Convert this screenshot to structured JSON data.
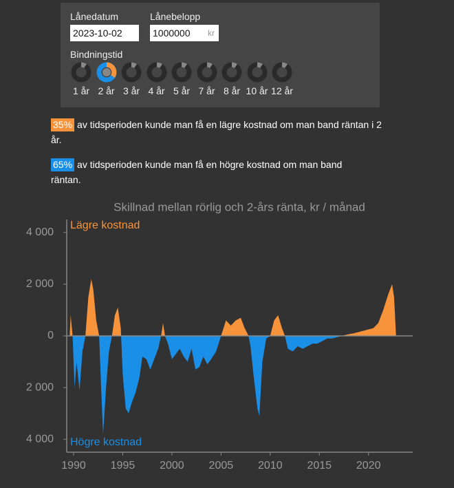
{
  "panel": {
    "date_label": "Lånedatum",
    "date_value": "2023-10-02",
    "amount_label": "Lånebelopp",
    "amount_value": "1000000",
    "amount_unit": "kr",
    "term_label": "Bindningstid",
    "terms": [
      "1 år",
      "2 år",
      "3 år",
      "4 år",
      "5 år",
      "7 år",
      "8 år",
      "10 år",
      "12 år"
    ]
  },
  "summary": [
    {
      "percent": "35%",
      "text": "av tidsperioden kunde man få en lägre kostnad om man band räntan i 2 år."
    },
    {
      "percent": "65%",
      "text": "av tidsperioden kunde man få en högre kostnad om man band räntan."
    }
  ],
  "chart_data": {
    "type": "area",
    "title": "Skillnad mellan rörlig och 2-års ränta, kr / månad",
    "annotations": [
      "Lägre kostnad",
      "Högre kostnad"
    ],
    "positive_color": "#f7943b",
    "negative_color": "#1a8fe8",
    "xlim": [
      1989.3,
      2024.5
    ],
    "xticks": [
      1990,
      1995,
      2000,
      2005,
      2010,
      2015,
      2020
    ],
    "ylim": [
      -4500,
      4500
    ],
    "yticks": [
      {
        "value": 4000,
        "label": "4 000"
      },
      {
        "value": 2000,
        "label": "2 000"
      },
      0,
      {
        "value": -2000,
        "label": "2 000"
      },
      {
        "value": -4000,
        "label": "4 000"
      }
    ],
    "x": [
      1989.6,
      1989.7,
      1989.9,
      1990.1,
      1990.3,
      1990.6,
      1990.9,
      1991.2,
      1991.5,
      1991.8,
      1992.0,
      1992.3,
      1992.6,
      1992.8,
      1993.0,
      1993.3,
      1993.6,
      1993.9,
      1994.2,
      1994.5,
      1994.8,
      1995.0,
      1995.3,
      1995.6,
      1995.9,
      1996.3,
      1996.7,
      1997.0,
      1997.4,
      1997.8,
      1998.2,
      1998.6,
      1998.9,
      1999.1,
      1999.3,
      1999.6,
      2000.0,
      2000.4,
      2000.8,
      2001.2,
      2001.6,
      2002.0,
      2002.4,
      2002.8,
      2003.2,
      2003.6,
      2004.0,
      2004.5,
      2005.0,
      2005.5,
      2006.0,
      2006.5,
      2007.0,
      2007.4,
      2007.8,
      2008.0,
      2008.3,
      2008.7,
      2008.9,
      2009.2,
      2009.6,
      2010.0,
      2010.4,
      2010.8,
      2011.2,
      2011.5,
      2011.8,
      2012.3,
      2012.8,
      2013.3,
      2013.8,
      2014.3,
      2014.8,
      2015.3,
      2015.8,
      2016.3,
      2016.8,
      2017.3,
      2017.8,
      2018.5,
      2019.0,
      2019.5,
      2020.0,
      2020.5,
      2021.0,
      2021.5,
      2022.0,
      2022.4,
      2022.6,
      2022.7,
      2022.8
    ],
    "values": [
      0,
      800,
      0,
      -2000,
      -1000,
      -2100,
      -600,
      0,
      1500,
      2200,
      1800,
      600,
      0,
      -2000,
      -3800,
      -2000,
      -600,
      0,
      800,
      1100,
      300,
      -1500,
      -2800,
      -3000,
      -2600,
      -2200,
      -1600,
      -800,
      -900,
      -1300,
      -900,
      -500,
      0,
      500,
      0,
      -300,
      -900,
      -700,
      -500,
      -800,
      -1000,
      -500,
      -1300,
      -1200,
      -800,
      -1100,
      -900,
      -600,
      0,
      600,
      400,
      600,
      700,
      300,
      0,
      -400,
      -1500,
      -2800,
      -3100,
      -1000,
      -100,
      0,
      600,
      800,
      300,
      0,
      -500,
      -600,
      -400,
      -500,
      -400,
      -300,
      -300,
      -200,
      -100,
      -100,
      -50,
      0,
      50,
      100,
      150,
      200,
      250,
      300,
      500,
      1000,
      1600,
      2000,
      1500,
      800,
      0
    ]
  }
}
